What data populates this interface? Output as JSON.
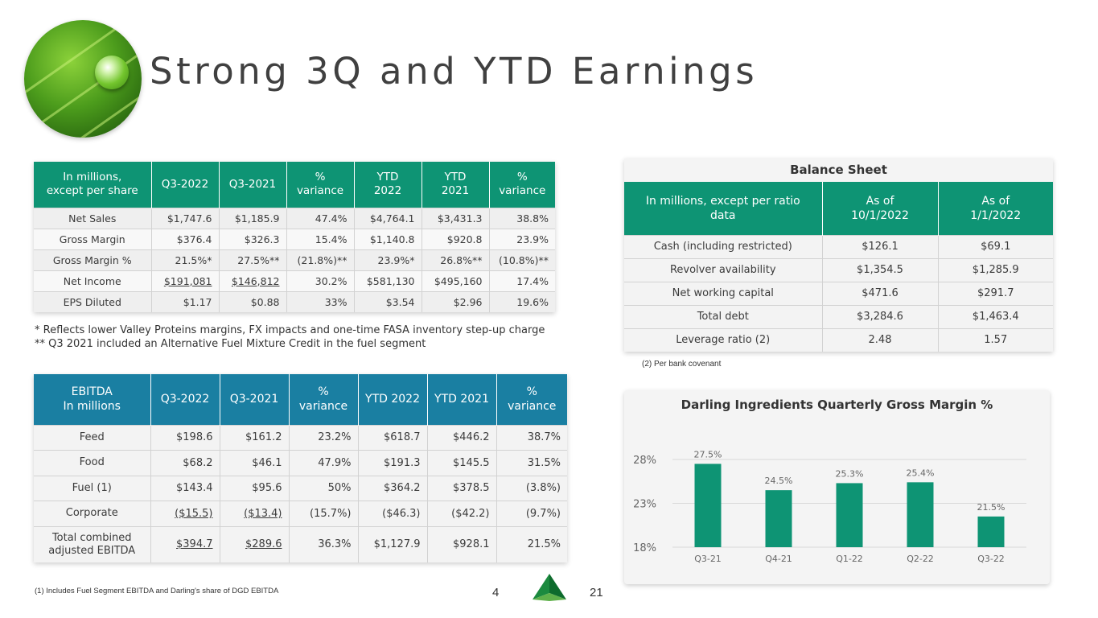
{
  "title": "Strong 3Q and YTD Earnings",
  "earnings": {
    "headers": [
      "In millions,\nexcept per share",
      "Q3-2022",
      "Q3-2021",
      "%\nvariance",
      "YTD\n2022",
      "YTD\n2021",
      "%\nvariance"
    ],
    "rows": [
      {
        "label": "Net Sales",
        "cells": [
          "$1,747.6",
          "$1,185.9",
          "47.4%",
          "$4,764.1",
          "$3,431.3",
          "38.8%"
        ]
      },
      {
        "label": "Gross Margin",
        "cells": [
          "$376.4",
          "$326.3",
          "15.4%",
          "$1,140.8",
          "$920.8",
          "23.9%"
        ]
      },
      {
        "label": "Gross Margin %",
        "cells": [
          "21.5%*",
          "27.5%**",
          "(21.8%)**",
          "23.9%*",
          "26.8%**",
          "(10.8%)**"
        ]
      },
      {
        "label": "Net Income",
        "cells": [
          "$191,081",
          "$146,812",
          "30.2%",
          "$581,130",
          "$495,160",
          "17.4%"
        ]
      },
      {
        "label": "EPS Diluted",
        "cells": [
          "$1.17",
          "$0.88",
          "33%",
          "$3.54",
          "$2.96",
          "19.6%"
        ]
      }
    ],
    "notes": [
      "* Reflects lower Valley Proteins margins, FX impacts and one-time FASA inventory step-up charge",
      "** Q3 2021 included an Alternative Fuel Mixture Credit in the fuel segment"
    ]
  },
  "ebitda": {
    "headers": [
      "EBITDA\nIn millions",
      "Q3-2022",
      "Q3-2021",
      "%\nvariance",
      "YTD 2022",
      "YTD 2021",
      "%\nvariance"
    ],
    "rows": [
      {
        "label": "Feed",
        "cells": [
          "$198.6",
          "$161.2",
          "23.2%",
          "$618.7",
          "$446.2",
          "38.7%"
        ]
      },
      {
        "label": "Food",
        "cells": [
          "$68.2",
          "$46.1",
          "47.9%",
          "$191.3",
          "$145.5",
          "31.5%"
        ]
      },
      {
        "label": "Fuel (1)",
        "cells": [
          "$143.4",
          "$95.6",
          "50%",
          "$364.2",
          "$378.5",
          "(3.8%)"
        ]
      },
      {
        "label": "Corporate",
        "cells": [
          "($15.5)",
          "($13.4)",
          "(15.7%)",
          "($46.3)",
          "($42.2)",
          "(9.7%)"
        ]
      },
      {
        "label": "Total combined\nadjusted EBITDA",
        "cells": [
          "$394.7",
          "$289.6",
          "36.3%",
          "$1,127.9",
          "$928.1",
          "21.5%"
        ]
      }
    ],
    "footnote": "(1) Includes Fuel Segment EBITDA and Darling's share of DGD EBITDA"
  },
  "balance_sheet": {
    "title": "Balance Sheet",
    "headers": [
      "In millions, except per ratio\ndata",
      "As of\n10/1/2022",
      "As of\n1/1/2022"
    ],
    "rows": [
      {
        "label": "Cash (including restricted)",
        "cells": [
          "$126.1",
          "$69.1"
        ]
      },
      {
        "label": "Revolver availability",
        "cells": [
          "$1,354.5",
          "$1,285.9"
        ]
      },
      {
        "label": "Net working capital",
        "cells": [
          "$471.6",
          "$291.7"
        ]
      },
      {
        "label": "Total debt",
        "cells": [
          "$3,284.6",
          "$1,463.4"
        ]
      },
      {
        "label": "Leverage ratio (2)",
        "cells": [
          "2.48",
          "1.57"
        ]
      }
    ],
    "note": "(2) Per bank covenant"
  },
  "chart_data": {
    "type": "bar",
    "title": "Darling Ingredients Quarterly Gross Margin %",
    "categories": [
      "Q3-21",
      "Q4-21",
      "Q1-22",
      "Q2-22",
      "Q3-22"
    ],
    "values": [
      27.5,
      24.5,
      25.3,
      25.4,
      21.5
    ],
    "data_labels": [
      "27.5%",
      "24.5%",
      "25.3%",
      "25.4%",
      "21.5%"
    ],
    "yticks": [
      18,
      23,
      28
    ],
    "ytick_labels": [
      "18%",
      "23%",
      "28%"
    ],
    "ylim": [
      18,
      28
    ],
    "grid": true,
    "bar_color": "#0e9474"
  },
  "page": {
    "left": "4",
    "right": "21"
  }
}
